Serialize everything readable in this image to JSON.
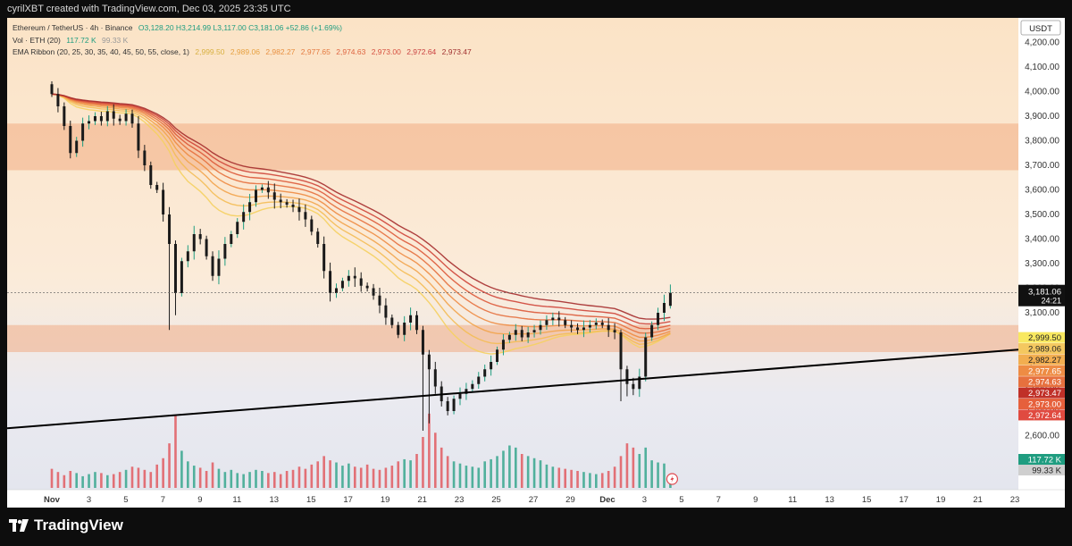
{
  "header": {
    "credit": "cyrilXBT created with TradingView.com, Dec 03, 2025 23:35 UTC"
  },
  "legend": {
    "symbol": "Ethereum / TetherUS · 4h · Binance",
    "ohlc": "O3,128.20  H3,214.99  L3,117.00  C3,181.06  +52.86 (+1.69%)",
    "vol_label": "Vol · ETH (20)",
    "vol_value": "117.72 K",
    "vol_ma": "99.33 K",
    "ema_label": "EMA Ribbon (20, 25, 30, 35, 40, 45, 50, 55, close, 1)",
    "ema_values": [
      "2,999.50",
      "2,989.06",
      "2,982.27",
      "2,977.65",
      "2,974.63",
      "2,973.00",
      "2,972.64",
      "2,973.47"
    ]
  },
  "currency_badge": "USDT",
  "footer": {
    "brand": "TradingView"
  },
  "colors": {
    "up": "#1f9d80",
    "down": "#e0484e",
    "zone": "#f0a070",
    "trendline": "#000000",
    "ema": [
      "#f5d060",
      "#f4bc55",
      "#f2a44c",
      "#ee8c44",
      "#e6703e",
      "#dd5a3a",
      "#cf4538",
      "#a52c2c"
    ]
  },
  "chart_data": {
    "type": "candlestick",
    "symbol": "ETHUSDT",
    "timeframe": "4h",
    "ylim": [
      2380,
      4300
    ],
    "y_ticks": [
      2500,
      2600,
      2700,
      2800,
      2900,
      3000,
      3100,
      3200,
      3300,
      3400,
      3500,
      3600,
      3700,
      3800,
      3900,
      4000,
      4100,
      4200
    ],
    "x_ticks": [
      "Nov",
      "3",
      "5",
      "7",
      "9",
      "11",
      "13",
      "15",
      "17",
      "19",
      "21",
      "23",
      "25",
      "27",
      "29",
      "Dec",
      "3",
      "5",
      "7",
      "9",
      "11",
      "13",
      "15",
      "17",
      "19",
      "21",
      "23"
    ],
    "x_tick_day_index": [
      0,
      2,
      4,
      6,
      8,
      10,
      12,
      14,
      16,
      18,
      20,
      22,
      24,
      26,
      28,
      30,
      32,
      34,
      36,
      38,
      40,
      42,
      44,
      46,
      48,
      50,
      52
    ],
    "zones": [
      {
        "from": 3680,
        "to": 3870
      },
      {
        "from": 2940,
        "to": 3050
      }
    ],
    "trendline": {
      "start": [
        "Oct 31",
        2630
      ],
      "end": [
        "Dec 23",
        2950
      ]
    },
    "last_price": "3,181.06",
    "countdown": "24:21",
    "volume_labels": [
      "117.72 K",
      "99.33 K"
    ],
    "closes": [
      3990,
      3940,
      3860,
      3750,
      3800,
      3870,
      3880,
      3900,
      3880,
      3920,
      3890,
      3880,
      3910,
      3870,
      3760,
      3700,
      3620,
      3600,
      3500,
      3380,
      3180,
      3310,
      3350,
      3420,
      3400,
      3330,
      3250,
      3320,
      3380,
      3420,
      3470,
      3510,
      3550,
      3600,
      3610,
      3590,
      3560,
      3550,
      3540,
      3530,
      3510,
      3480,
      3430,
      3380,
      3270,
      3180,
      3200,
      3230,
      3250,
      3240,
      3210,
      3200,
      3170,
      3130,
      3080,
      3050,
      3010,
      3060,
      3090,
      3030,
      2930,
      2870,
      2800,
      2740,
      2700,
      2750,
      2770,
      2790,
      2810,
      2840,
      2870,
      2900,
      2950,
      2990,
      3010,
      3030,
      3000,
      3020,
      3030,
      3050,
      3070,
      3080,
      3070,
      3050,
      3040,
      3030,
      3040,
      3050,
      3060,
      3050,
      3030,
      3020,
      2870,
      2810,
      2790,
      2840,
      3000,
      3050,
      3100,
      3140,
      3181.06
    ],
    "volumes": [
      180,
      150,
      120,
      160,
      140,
      110,
      130,
      150,
      140,
      120,
      130,
      150,
      170,
      200,
      190,
      170,
      150,
      220,
      280,
      420,
      680,
      350,
      250,
      210,
      190,
      160,
      240,
      180,
      150,
      170,
      140,
      130,
      150,
      170,
      160,
      140,
      150,
      130,
      160,
      170,
      200,
      180,
      220,
      250,
      300,
      260,
      240,
      210,
      230,
      200,
      190,
      220,
      180,
      170,
      190,
      210,
      250,
      270,
      260,
      320,
      480,
      700,
      520,
      380,
      300,
      250,
      230,
      210,
      200,
      190,
      250,
      270,
      300,
      350,
      400,
      380,
      320,
      300,
      280,
      260,
      220,
      200,
      190,
      180,
      170,
      160,
      150,
      140,
      130,
      140,
      160,
      200,
      300,
      420,
      380,
      320,
      380,
      260,
      240,
      230,
      117.72
    ]
  }
}
